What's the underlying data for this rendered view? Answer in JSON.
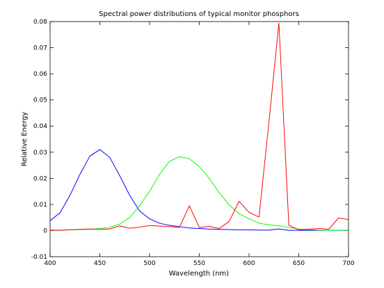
{
  "chart_data": {
    "type": "line",
    "title": "Spectral power distributions of typical monitor phosphors",
    "xlabel": "Wavelength (nm)",
    "ylabel": "Relative Energy",
    "xlim": [
      400,
      700
    ],
    "ylim": [
      -0.01,
      0.08
    ],
    "xticks": [
      400,
      450,
      500,
      550,
      600,
      650,
      700
    ],
    "xtick_labels": [
      "400",
      "450",
      "500",
      "550",
      "600",
      "650",
      "700"
    ],
    "yticks": [
      -0.01,
      0,
      0.01,
      0.02,
      0.03,
      0.04,
      0.05,
      0.06,
      0.07,
      0.08
    ],
    "ytick_labels": [
      "-0.01",
      "0",
      "0.01",
      "0.02",
      "0.03",
      "0.04",
      "0.05",
      "0.06",
      "0.07",
      "0.08"
    ],
    "grid": false,
    "x": [
      400,
      410,
      420,
      430,
      440,
      450,
      460,
      470,
      480,
      490,
      500,
      510,
      520,
      530,
      540,
      550,
      560,
      570,
      580,
      590,
      600,
      610,
      620,
      630,
      640,
      650,
      660,
      670,
      680,
      690,
      700
    ],
    "series": [
      {
        "color": "#0000ff",
        "values": [
          0.0038,
          0.0068,
          0.0135,
          0.0215,
          0.0285,
          0.031,
          0.028,
          0.021,
          0.0135,
          0.0075,
          0.0045,
          0.0028,
          0.002,
          0.0015,
          0.001,
          0.0008,
          0.0006,
          0.0005,
          0.0004,
          0.0003,
          0.0003,
          0.0002,
          0.0002,
          0.0006,
          0.0001,
          0.0001,
          0.0001,
          0.0001,
          0.0001,
          0.0001,
          0.0001
        ]
      },
      {
        "color": "#00ff00",
        "values": [
          0.0002,
          0.0002,
          0.0003,
          0.0004,
          0.0005,
          0.0008,
          0.0012,
          0.0025,
          0.005,
          0.0095,
          0.015,
          0.0215,
          0.0265,
          0.0283,
          0.0275,
          0.0245,
          0.02,
          0.0145,
          0.0098,
          0.0065,
          0.0045,
          0.0028,
          0.0022,
          0.0018,
          0.0012,
          0.0006,
          0.0004,
          0.0002,
          0.0001,
          0.0001,
          0.0001
        ]
      },
      {
        "color": "#ff0000",
        "values": [
          0.0001,
          0.0001,
          0.0003,
          0.0005,
          0.0006,
          0.0005,
          0.0006,
          0.0018,
          0.0009,
          0.0013,
          0.0019,
          0.0017,
          0.0015,
          0.0012,
          0.0095,
          0.0012,
          0.0016,
          0.0008,
          0.0035,
          0.0112,
          0.007,
          0.0052,
          0.0415,
          0.0795,
          0.002,
          0.0003,
          0.0005,
          0.0008,
          0.0005,
          0.0048,
          0.0042
        ]
      }
    ]
  }
}
